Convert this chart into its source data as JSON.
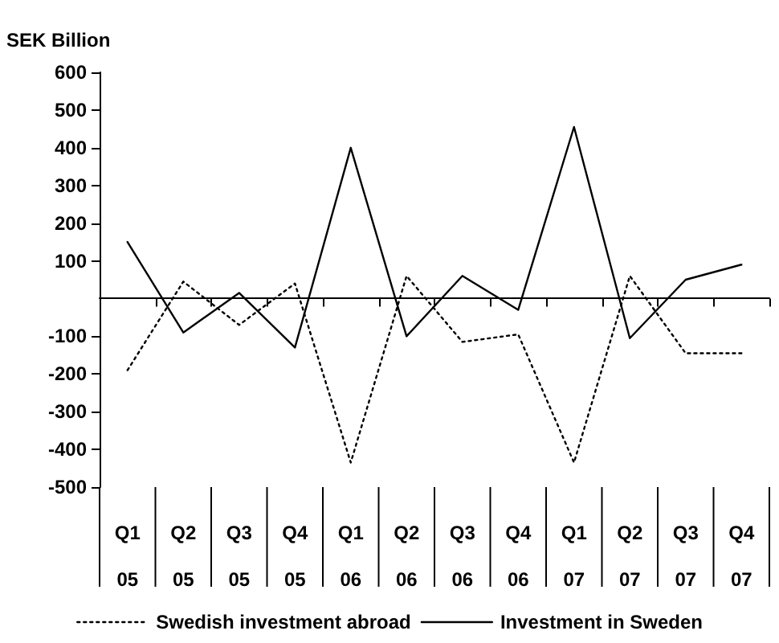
{
  "chart_data": {
    "type": "line",
    "ylabel": "SEK Billion",
    "categories": [
      "Q1\n05",
      "Q2\n05",
      "Q3\n05",
      "Q4\n05",
      "Q1\n06",
      "Q2\n06",
      "Q3\n06",
      "Q4\n06",
      "Q1\n07",
      "Q2\n07",
      "Q3\n07",
      "Q4\n07"
    ],
    "series": [
      {
        "name": "Swedish investment abroad",
        "color": "#000000",
        "line_style": "dotted",
        "values": [
          -190,
          45,
          -70,
          40,
          -435,
          60,
          -115,
          -95,
          -435,
          60,
          -145,
          -145
        ]
      },
      {
        "name": "Investment in Sweden",
        "color": "#000000",
        "line_style": "solid",
        "values": [
          150,
          -90,
          15,
          -130,
          400,
          -100,
          60,
          -30,
          455,
          -105,
          50,
          90
        ]
      }
    ],
    "ylim": [
      -500,
      600
    ],
    "yticks": [
      -500,
      -400,
      -300,
      -200,
      -100,
      100,
      200,
      300,
      400,
      500,
      600
    ],
    "grid": false,
    "legend": "bottom",
    "marker": "none"
  }
}
